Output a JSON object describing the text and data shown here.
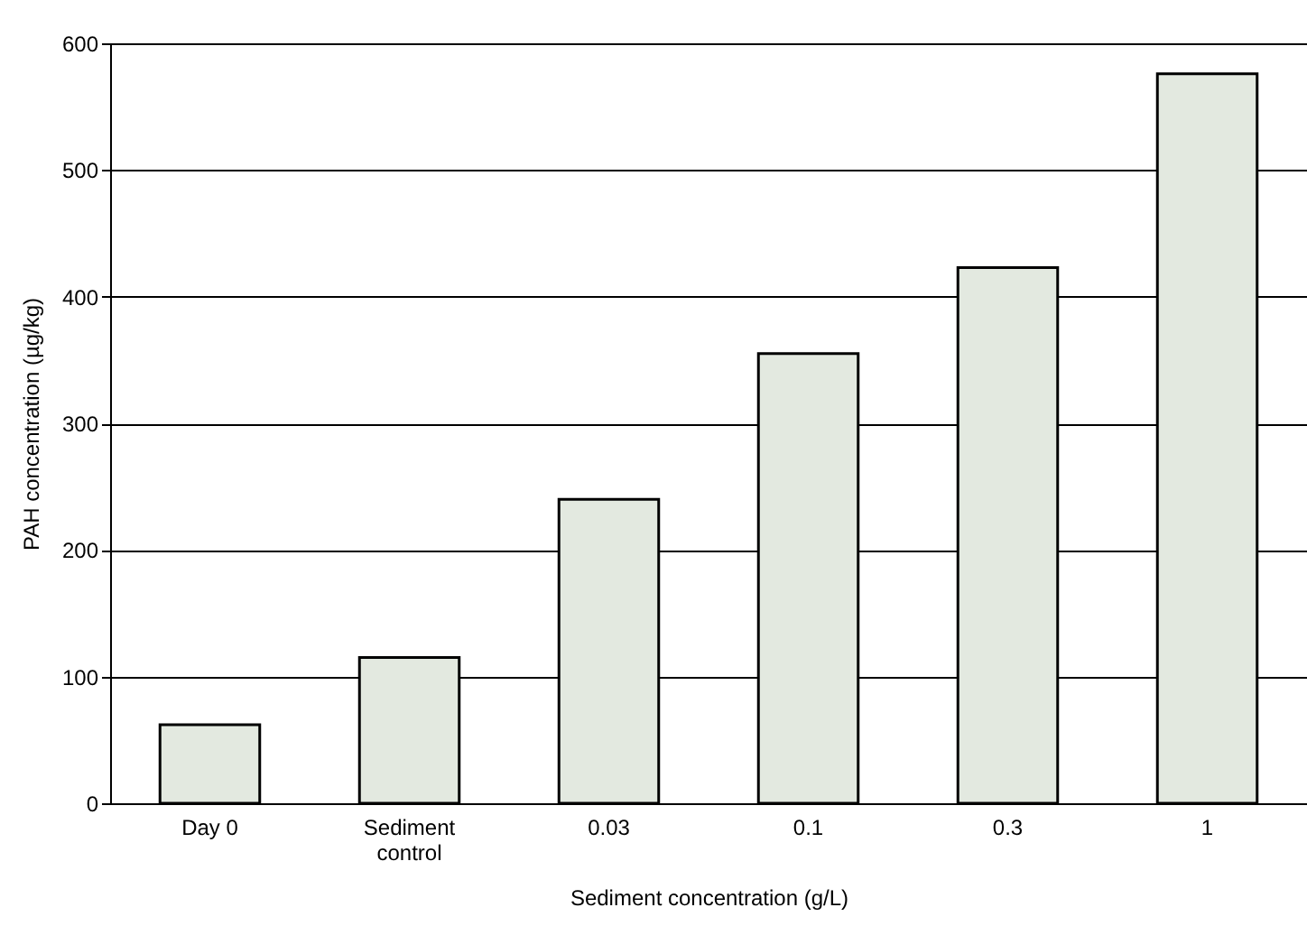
{
  "chart_data": {
    "type": "bar",
    "xlabel": "Sediment concentration (g/L)",
    "ylabel": "PAH concentration (µg/kg)",
    "categories": [
      "Day 0",
      "Sediment control",
      "0.03",
      "0.1",
      "0.3",
      "1"
    ],
    "values": [
      62,
      115,
      240,
      355,
      423,
      576
    ],
    "color": "#e3e9e0",
    "ylim": [
      0,
      600
    ],
    "yticks": [
      0,
      100,
      200,
      300,
      400,
      500,
      600
    ],
    "grid": "y"
  }
}
